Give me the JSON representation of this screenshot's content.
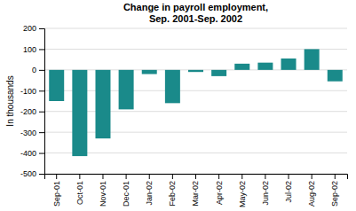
{
  "chart_data": {
    "type": "bar",
    "title": "Change in payroll employment,\nSep. 2001-Sep. 2002",
    "ylabel": "In thousands",
    "categories": [
      "Sep-01",
      "Oct-01",
      "Nov-01",
      "Dec-01",
      "Jan-02",
      "Feb-02",
      "Mar-02",
      "Apr-02",
      "May-02",
      "Jun-02",
      "Jul-02",
      "Aug-02",
      "Sep-02"
    ],
    "values": [
      -150,
      -415,
      -330,
      -190,
      -20,
      -160,
      -10,
      -30,
      30,
      35,
      55,
      100,
      -55
    ],
    "color": "#1a8a8a",
    "ylim": [
      -500,
      200
    ],
    "yticks": [
      -500,
      -400,
      -300,
      -200,
      -100,
      0,
      100,
      200
    ],
    "grid": true
  }
}
